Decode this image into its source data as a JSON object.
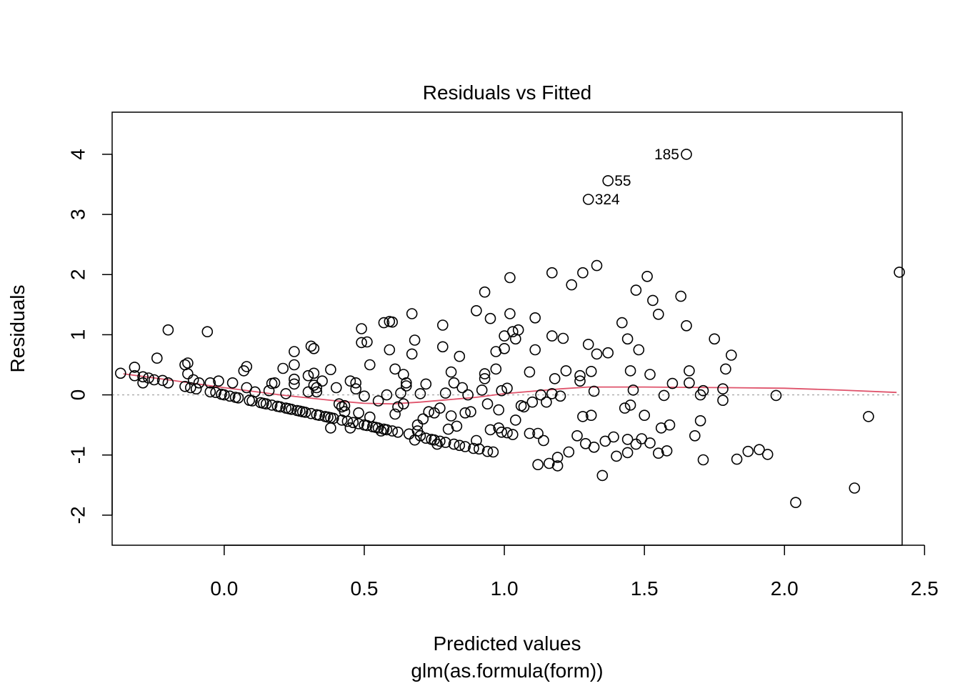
{
  "chart_data": {
    "type": "scatter",
    "title": "Residuals vs Fitted",
    "xlabel": "Predicted values",
    "sublabel": "glm(as.formula(form))",
    "ylabel": "Residuals",
    "xlim": [
      -0.4,
      2.42
    ],
    "ylim": [
      -2.5,
      4.7
    ],
    "xticks": [
      0.0,
      0.5,
      1.0,
      1.5,
      2.0,
      2.5
    ],
    "xtick_labels": [
      "0.0",
      "0.5",
      "1.0",
      "1.5",
      "2.0",
      "2.5"
    ],
    "yticks": [
      -2,
      -1,
      0,
      1,
      2,
      3,
      4
    ],
    "ytick_labels": [
      "-2",
      "-1",
      "0",
      "1",
      "2",
      "3",
      "4"
    ],
    "grid": false,
    "reference_line": {
      "y": 0,
      "style": "dotted",
      "color": "#aaaaaa"
    },
    "smooth_line": {
      "color": "#df536b",
      "x": [
        -0.36,
        -0.2,
        0.0,
        0.2,
        0.4,
        0.5,
        0.6,
        0.7,
        0.8,
        0.9,
        1.0,
        1.1,
        1.2,
        1.3,
        1.5,
        1.8,
        2.0,
        2.2,
        2.4
      ],
      "y": [
        0.35,
        0.25,
        0.12,
        0.0,
        -0.1,
        -0.14,
        -0.15,
        -0.12,
        -0.08,
        -0.04,
        0.02,
        0.06,
        0.1,
        0.13,
        0.13,
        0.12,
        0.11,
        0.08,
        0.04
      ]
    },
    "annotations": [
      {
        "label": "185",
        "x": 1.65,
        "y": 4.0
      },
      {
        "label": "55",
        "x": 1.37,
        "y": 3.56
      },
      {
        "label": "324",
        "x": 1.3,
        "y": 3.25
      }
    ],
    "points": [
      [
        -0.37,
        0.36
      ],
      [
        -0.32,
        0.46
      ],
      [
        -0.32,
        0.32
      ],
      [
        -0.29,
        0.3
      ],
      [
        -0.29,
        0.2
      ],
      [
        -0.27,
        0.28
      ],
      [
        -0.25,
        0.25
      ],
      [
        -0.24,
        0.61
      ],
      [
        -0.22,
        0.24
      ],
      [
        -0.2,
        0.2
      ],
      [
        -0.2,
        1.08
      ],
      [
        -0.14,
        0.5
      ],
      [
        -0.13,
        0.53
      ],
      [
        -0.13,
        0.35
      ],
      [
        -0.14,
        0.14
      ],
      [
        -0.12,
        0.12
      ],
      [
        -0.11,
        0.25
      ],
      [
        -0.1,
        0.1
      ],
      [
        -0.09,
        0.2
      ],
      [
        -0.06,
        1.05
      ],
      [
        -0.05,
        0.2
      ],
      [
        -0.05,
        0.05
      ],
      [
        -0.03,
        0.04
      ],
      [
        -0.02,
        0.23
      ],
      [
        -0.01,
        0.01
      ],
      [
        0.0,
        0.0
      ],
      [
        0.02,
        -0.02
      ],
      [
        0.03,
        0.2
      ],
      [
        0.04,
        -0.04
      ],
      [
        0.05,
        -0.05
      ],
      [
        0.07,
        0.4
      ],
      [
        0.08,
        0.47
      ],
      [
        0.08,
        0.12
      ],
      [
        0.09,
        -0.09
      ],
      [
        0.1,
        -0.1
      ],
      [
        0.11,
        0.05
      ],
      [
        0.13,
        -0.13
      ],
      [
        0.14,
        -0.14
      ],
      [
        0.15,
        -0.15
      ],
      [
        0.16,
        0.07
      ],
      [
        0.17,
        0.19
      ],
      [
        0.17,
        -0.17
      ],
      [
        0.18,
        0.2
      ],
      [
        0.19,
        -0.19
      ],
      [
        0.2,
        -0.2
      ],
      [
        0.21,
        0.44
      ],
      [
        0.22,
        0.02
      ],
      [
        0.22,
        -0.22
      ],
      [
        0.23,
        -0.23
      ],
      [
        0.24,
        -0.24
      ],
      [
        0.25,
        0.72
      ],
      [
        0.25,
        0.5
      ],
      [
        0.25,
        0.26
      ],
      [
        0.25,
        0.18
      ],
      [
        0.26,
        -0.26
      ],
      [
        0.27,
        -0.27
      ],
      [
        0.28,
        -0.28
      ],
      [
        0.29,
        -0.29
      ],
      [
        0.3,
        0.32
      ],
      [
        0.3,
        0.05
      ],
      [
        0.31,
        0.81
      ],
      [
        0.31,
        -0.31
      ],
      [
        0.32,
        0.77
      ],
      [
        0.32,
        0.36
      ],
      [
        0.32,
        0.16
      ],
      [
        0.33,
        0.12
      ],
      [
        0.33,
        0.05
      ],
      [
        0.33,
        -0.33
      ],
      [
        0.34,
        -0.34
      ],
      [
        0.35,
        0.23
      ],
      [
        0.36,
        -0.36
      ],
      [
        0.37,
        -0.37
      ],
      [
        0.38,
        0.42
      ],
      [
        0.38,
        -0.38
      ],
      [
        0.38,
        -0.55
      ],
      [
        0.39,
        -0.39
      ],
      [
        0.4,
        0.12
      ],
      [
        0.41,
        -0.15
      ],
      [
        0.42,
        -0.2
      ],
      [
        0.42,
        -0.42
      ],
      [
        0.43,
        -0.28
      ],
      [
        0.43,
        -0.18
      ],
      [
        0.44,
        -0.44
      ],
      [
        0.45,
        -0.55
      ],
      [
        0.45,
        0.23
      ],
      [
        0.46,
        -0.46
      ],
      [
        0.47,
        0.2
      ],
      [
        0.47,
        0.1
      ],
      [
        0.48,
        -0.3
      ],
      [
        0.48,
        -0.48
      ],
      [
        0.49,
        1.1
      ],
      [
        0.49,
        0.87
      ],
      [
        0.5,
        -0.02
      ],
      [
        0.5,
        -0.5
      ],
      [
        0.51,
        0.88
      ],
      [
        0.51,
        -0.51
      ],
      [
        0.52,
        0.5
      ],
      [
        0.52,
        -0.37
      ],
      [
        0.53,
        -0.53
      ],
      [
        0.54,
        -0.54
      ],
      [
        0.55,
        -0.1
      ],
      [
        0.55,
        -0.55
      ],
      [
        0.56,
        -0.6
      ],
      [
        0.57,
        1.2
      ],
      [
        0.57,
        -0.57
      ],
      [
        0.58,
        0.0
      ],
      [
        0.58,
        -0.58
      ],
      [
        0.59,
        1.22
      ],
      [
        0.59,
        0.75
      ],
      [
        0.6,
        1.21
      ],
      [
        0.6,
        -0.6
      ],
      [
        0.61,
        0.43
      ],
      [
        0.61,
        -0.32
      ],
      [
        0.62,
        -0.2
      ],
      [
        0.62,
        -0.62
      ],
      [
        0.63,
        0.03
      ],
      [
        0.64,
        0.34
      ],
      [
        0.64,
        -0.15
      ],
      [
        0.65,
        0.2
      ],
      [
        0.65,
        0.15
      ],
      [
        0.66,
        -0.65
      ],
      [
        0.67,
        0.68
      ],
      [
        0.67,
        1.35
      ],
      [
        0.68,
        0.91
      ],
      [
        0.68,
        -0.75
      ],
      [
        0.69,
        -0.5
      ],
      [
        0.69,
        -0.6
      ],
      [
        0.7,
        0.02
      ],
      [
        0.7,
        -0.68
      ],
      [
        0.71,
        -0.4
      ],
      [
        0.72,
        0.18
      ],
      [
        0.72,
        -0.72
      ],
      [
        0.73,
        -0.28
      ],
      [
        0.74,
        -0.74
      ],
      [
        0.75,
        -0.3
      ],
      [
        0.75,
        -0.75
      ],
      [
        0.76,
        -0.82
      ],
      [
        0.77,
        -0.22
      ],
      [
        0.77,
        -0.77
      ],
      [
        0.78,
        1.16
      ],
      [
        0.78,
        0.8
      ],
      [
        0.79,
        0.03
      ],
      [
        0.79,
        -0.79
      ],
      [
        0.8,
        -0.57
      ],
      [
        0.81,
        0.38
      ],
      [
        0.81,
        -0.35
      ],
      [
        0.82,
        0.2
      ],
      [
        0.82,
        -0.82
      ],
      [
        0.83,
        -0.52
      ],
      [
        0.84,
        0.64
      ],
      [
        0.84,
        -0.84
      ],
      [
        0.85,
        0.12
      ],
      [
        0.86,
        -0.3
      ],
      [
        0.86,
        -0.86
      ],
      [
        0.87,
        0.0
      ],
      [
        0.88,
        -0.28
      ],
      [
        0.89,
        -0.89
      ],
      [
        0.9,
        1.4
      ],
      [
        0.9,
        -0.76
      ],
      [
        0.91,
        -0.9
      ],
      [
        0.92,
        0.08
      ],
      [
        0.93,
        1.71
      ],
      [
        0.93,
        0.35
      ],
      [
        0.93,
        0.27
      ],
      [
        0.94,
        -0.15
      ],
      [
        0.94,
        -0.94
      ],
      [
        0.95,
        1.27
      ],
      [
        0.95,
        -0.58
      ],
      [
        0.96,
        -0.95
      ],
      [
        0.97,
        0.72
      ],
      [
        0.97,
        0.43
      ],
      [
        0.98,
        -0.55
      ],
      [
        0.98,
        -0.25
      ],
      [
        0.99,
        -0.62
      ],
      [
        0.99,
        0.07
      ],
      [
        1.0,
        0.98
      ],
      [
        1.0,
        0.77
      ],
      [
        1.01,
        0.11
      ],
      [
        1.01,
        -0.63
      ],
      [
        1.02,
        1.95
      ],
      [
        1.02,
        1.35
      ],
      [
        1.03,
        1.05
      ],
      [
        1.03,
        -0.66
      ],
      [
        1.04,
        0.93
      ],
      [
        1.04,
        -0.42
      ],
      [
        1.05,
        1.08
      ],
      [
        1.06,
        -0.18
      ],
      [
        1.07,
        -0.2
      ],
      [
        1.09,
        0.38
      ],
      [
        1.09,
        -0.64
      ],
      [
        1.1,
        -0.12
      ],
      [
        1.11,
        1.28
      ],
      [
        1.11,
        0.75
      ],
      [
        1.12,
        -0.64
      ],
      [
        1.12,
        -1.16
      ],
      [
        1.13,
        0.0
      ],
      [
        1.14,
        -0.76
      ],
      [
        1.15,
        -0.12
      ],
      [
        1.16,
        -1.14
      ],
      [
        1.17,
        2.03
      ],
      [
        1.17,
        0.98
      ],
      [
        1.17,
        0.02
      ],
      [
        1.18,
        0.27
      ],
      [
        1.19,
        -1.04
      ],
      [
        1.19,
        -1.18
      ],
      [
        1.2,
        -0.02
      ],
      [
        1.21,
        0.94
      ],
      [
        1.22,
        0.4
      ],
      [
        1.23,
        -0.95
      ],
      [
        1.24,
        1.83
      ],
      [
        1.26,
        -0.68
      ],
      [
        1.27,
        0.23
      ],
      [
        1.27,
        0.32
      ],
      [
        1.28,
        2.03
      ],
      [
        1.28,
        -0.36
      ],
      [
        1.29,
        -0.81
      ],
      [
        1.3,
        0.84
      ],
      [
        1.31,
        0.39
      ],
      [
        1.31,
        -0.34
      ],
      [
        1.32,
        0.06
      ],
      [
        1.32,
        -0.87
      ],
      [
        1.33,
        2.15
      ],
      [
        1.33,
        0.68
      ],
      [
        1.35,
        -1.34
      ],
      [
        1.36,
        -0.77
      ],
      [
        1.37,
        0.7
      ],
      [
        1.39,
        -0.7
      ],
      [
        1.4,
        -1.02
      ],
      [
        1.42,
        1.2
      ],
      [
        1.43,
        -0.22
      ],
      [
        1.44,
        0.93
      ],
      [
        1.44,
        -0.74
      ],
      [
        1.44,
        -0.96
      ],
      [
        1.45,
        0.4
      ],
      [
        1.45,
        -0.17
      ],
      [
        1.46,
        0.08
      ],
      [
        1.47,
        1.74
      ],
      [
        1.47,
        -0.82
      ],
      [
        1.48,
        0.75
      ],
      [
        1.49,
        -0.73
      ],
      [
        1.5,
        -0.34
      ],
      [
        1.51,
        1.97
      ],
      [
        1.52,
        0.34
      ],
      [
        1.52,
        -0.8
      ],
      [
        1.53,
        1.57
      ],
      [
        1.55,
        1.34
      ],
      [
        1.55,
        -0.97
      ],
      [
        1.56,
        -0.55
      ],
      [
        1.57,
        -0.01
      ],
      [
        1.58,
        -0.93
      ],
      [
        1.59,
        -0.5
      ],
      [
        1.6,
        0.19
      ],
      [
        1.63,
        1.64
      ],
      [
        1.65,
        1.15
      ],
      [
        1.66,
        0.2
      ],
      [
        1.66,
        0.4
      ],
      [
        1.68,
        -0.68
      ],
      [
        1.7,
        0.0
      ],
      [
        1.7,
        -0.43
      ],
      [
        1.71,
        0.07
      ],
      [
        1.71,
        -1.08
      ],
      [
        1.75,
        0.93
      ],
      [
        1.78,
        0.1
      ],
      [
        1.78,
        -0.09
      ],
      [
        1.79,
        0.43
      ],
      [
        1.81,
        0.66
      ],
      [
        1.83,
        -1.07
      ],
      [
        1.87,
        -0.94
      ],
      [
        1.91,
        -0.91
      ],
      [
        1.94,
        -0.99
      ],
      [
        1.97,
        -0.01
      ],
      [
        2.04,
        -1.79
      ],
      [
        2.25,
        -1.55
      ],
      [
        2.3,
        -0.36
      ],
      [
        2.41,
        2.04
      ]
    ]
  }
}
